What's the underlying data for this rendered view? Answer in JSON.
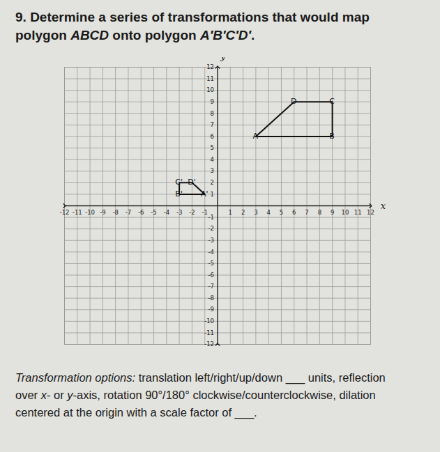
{
  "header": {
    "number": "9.",
    "lines": [
      [
        {
          "text": "Determine a series of transformations that would map",
          "italic": false
        }
      ],
      [
        {
          "text": "polygon ",
          "italic": false
        },
        {
          "text": "ABCD",
          "italic": true
        },
        {
          "text": " onto polygon ",
          "italic": false
        },
        {
          "text": "A′B′C′D′",
          "italic": true
        },
        {
          "text": ".",
          "italic": false
        }
      ]
    ]
  },
  "chart_data": {
    "type": "coordinate_plane",
    "x_label": "x",
    "y_label": "y",
    "xlim": [
      -12,
      12
    ],
    "ylim": [
      -12,
      12
    ],
    "xticks": [
      -12,
      -11,
      -10,
      -9,
      -8,
      -7,
      -6,
      -5,
      -4,
      -3,
      -2,
      -1,
      1,
      2,
      3,
      4,
      5,
      6,
      7,
      8,
      9,
      10,
      11,
      12
    ],
    "yticks": [
      -12,
      -11,
      -10,
      -9,
      -8,
      -7,
      -6,
      -5,
      -4,
      -3,
      -2,
      -1,
      1,
      2,
      3,
      4,
      5,
      6,
      7,
      8,
      9,
      10,
      11,
      12
    ],
    "grid": true,
    "polygons": [
      {
        "name": "ABCD",
        "vertices": [
          {
            "label": "A",
            "x": 3,
            "y": 6
          },
          {
            "label": "B",
            "x": 9,
            "y": 6
          },
          {
            "label": "C",
            "x": 9,
            "y": 9
          },
          {
            "label": "D",
            "x": 6,
            "y": 9
          }
        ]
      },
      {
        "name": "A′B′C′D′",
        "vertices": [
          {
            "label": "A'",
            "x": -1,
            "y": 1
          },
          {
            "label": "B'",
            "x": -3,
            "y": 1
          },
          {
            "label": "C'",
            "x": -3,
            "y": 2
          },
          {
            "label": "D'",
            "x": -2,
            "y": 2
          }
        ]
      }
    ]
  },
  "footer": {
    "lines": [
      [
        {
          "text": "Transformation options:",
          "italic": true
        },
        {
          "text": " translation left/right/up/down ___ units, reflection",
          "italic": false
        }
      ],
      [
        {
          "text": "over ",
          "italic": false
        },
        {
          "text": "x",
          "italic": true
        },
        {
          "text": "- or ",
          "italic": false
        },
        {
          "text": "y",
          "italic": true
        },
        {
          "text": "-axis, rotation 90°/180° clockwise/counterclockwise, dilation",
          "italic": false
        }
      ],
      [
        {
          "text": "centered at the origin with a scale factor of ___.",
          "italic": false
        }
      ]
    ]
  }
}
